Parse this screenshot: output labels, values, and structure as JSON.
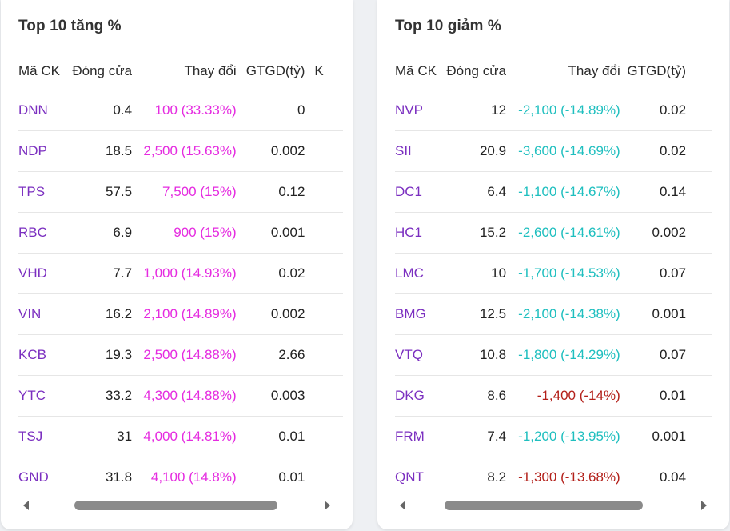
{
  "gainers": {
    "title": "Top 10 tăng %",
    "headers": {
      "symbol": "Mã CK",
      "close": "Đóng cửa",
      "change": "Thay đổi",
      "gtgd": "GTGD(tỷ)",
      "extra": "K"
    },
    "rows": [
      {
        "symbol": "DNN",
        "close": "0.4",
        "change": "100 (33.33%)",
        "gtgd": "0"
      },
      {
        "symbol": "NDP",
        "close": "18.5",
        "change": "2,500 (15.63%)",
        "gtgd": "0.002"
      },
      {
        "symbol": "TPS",
        "close": "57.5",
        "change": "7,500 (15%)",
        "gtgd": "0.12"
      },
      {
        "symbol": "RBC",
        "close": "6.9",
        "change": "900 (15%)",
        "gtgd": "0.001"
      },
      {
        "symbol": "VHD",
        "close": "7.7",
        "change": "1,000 (14.93%)",
        "gtgd": "0.02"
      },
      {
        "symbol": "VIN",
        "close": "16.2",
        "change": "2,100 (14.89%)",
        "gtgd": "0.002"
      },
      {
        "symbol": "KCB",
        "close": "19.3",
        "change": "2,500 (14.88%)",
        "gtgd": "2.66"
      },
      {
        "symbol": "YTC",
        "close": "33.2",
        "change": "4,300 (14.88%)",
        "gtgd": "0.003"
      },
      {
        "symbol": "TSJ",
        "close": "31",
        "change": "4,000 (14.81%)",
        "gtgd": "0.01"
      },
      {
        "symbol": "GND",
        "close": "31.8",
        "change": "4,100 (14.8%)",
        "gtgd": "0.01"
      }
    ],
    "change_color": "#e52be0"
  },
  "losers": {
    "title": "Top 10 giảm %",
    "headers": {
      "symbol": "Mã CK",
      "close": "Đóng cửa",
      "change": "Thay đổi",
      "gtgd": "GTGD(tỷ)"
    },
    "rows": [
      {
        "symbol": "NVP",
        "close": "12",
        "change": "-2,100 (-14.89%)",
        "gtgd": "0.02",
        "tone": "floor"
      },
      {
        "symbol": "SII",
        "close": "20.9",
        "change": "-3,600 (-14.69%)",
        "gtgd": "0.02",
        "tone": "floor"
      },
      {
        "symbol": "DC1",
        "close": "6.4",
        "change": "-1,100 (-14.67%)",
        "gtgd": "0.14",
        "tone": "floor"
      },
      {
        "symbol": "HC1",
        "close": "15.2",
        "change": "-2,600 (-14.61%)",
        "gtgd": "0.002",
        "tone": "floor"
      },
      {
        "symbol": "LMC",
        "close": "10",
        "change": "-1,700 (-14.53%)",
        "gtgd": "0.07",
        "tone": "floor"
      },
      {
        "symbol": "BMG",
        "close": "12.5",
        "change": "-2,100 (-14.38%)",
        "gtgd": "0.001",
        "tone": "floor"
      },
      {
        "symbol": "VTQ",
        "close": "10.8",
        "change": "-1,800 (-14.29%)",
        "gtgd": "0.07",
        "tone": "floor"
      },
      {
        "symbol": "DKG",
        "close": "8.6",
        "change": "-1,400 (-14%)",
        "gtgd": "0.01",
        "tone": "down"
      },
      {
        "symbol": "FRM",
        "close": "7.4",
        "change": "-1,200 (-13.95%)",
        "gtgd": "0.001",
        "tone": "floor"
      },
      {
        "symbol": "QNT",
        "close": "8.2",
        "change": "-1,300 (-13.68%)",
        "gtgd": "0.04",
        "tone": "down"
      }
    ],
    "floor_color": "#1fbfbf",
    "down_color": "#b3201a"
  }
}
